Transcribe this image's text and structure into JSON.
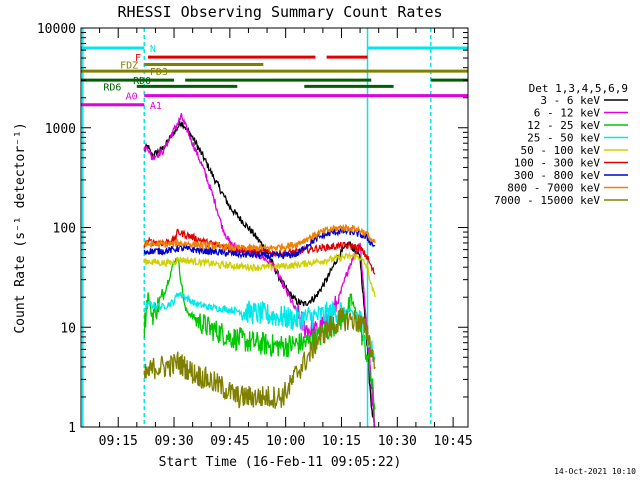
{
  "chart_data": {
    "type": "line",
    "title": "RHESSI Observing Summary Count Rates",
    "xlabel_prefix": "Start Time (",
    "start_time": "16-Feb-11 09:05:22",
    "xlabel_suffix": ")",
    "ylabel": "Count Rate (s⁻¹ detector⁻¹)",
    "y_scale": "log",
    "ylim": [
      1,
      10000
    ],
    "xlim_minutes_since_0905": [
      0,
      104
    ],
    "x_ticks": [
      {
        "label": "09:15",
        "minute": 10
      },
      {
        "label": "09:30",
        "minute": 25
      },
      {
        "label": "09:45",
        "minute": 40
      },
      {
        "label": "10:00",
        "minute": 55
      },
      {
        "label": "10:15",
        "minute": 70
      },
      {
        "label": "10:30",
        "minute": 85
      },
      {
        "label": "10:45",
        "minute": 100
      }
    ],
    "y_ticks": [
      {
        "label": "1",
        "value": 1
      },
      {
        "label": "10",
        "value": 10
      },
      {
        "label": "100",
        "value": 100
      },
      {
        "label": "1000",
        "value": 1000
      },
      {
        "label": "10000",
        "value": 10000
      }
    ],
    "legend": {
      "title": "Det 1,3,4,5,6,9",
      "placement": "right"
    },
    "footer_date": "14-Oct-2021 10:10",
    "series": [
      {
        "name": "3 - 6 keV",
        "color": "#000000",
        "x": [
          17,
          18,
          19,
          22,
          25,
          27,
          30,
          33,
          36,
          38,
          40,
          43,
          46,
          49,
          52,
          54,
          56,
          58,
          60,
          63,
          66,
          69,
          72,
          75,
          77,
          78,
          79
        ],
        "y": [
          600,
          650,
          520,
          620,
          900,
          1150,
          800,
          500,
          300,
          220,
          160,
          120,
          90,
          65,
          40,
          28,
          22,
          18,
          17,
          20,
          30,
          50,
          70,
          50,
          6,
          2,
          1
        ]
      },
      {
        "name": "6 - 12 keV",
        "color": "#e000e0",
        "x": [
          17,
          18,
          19,
          22,
          25,
          27,
          30,
          33,
          36,
          38,
          40,
          43,
          46,
          49,
          52,
          54,
          56,
          58,
          60,
          63,
          66,
          69,
          72,
          75,
          77,
          78,
          79
        ],
        "y": [
          600,
          640,
          500,
          580,
          950,
          1300,
          700,
          380,
          180,
          100,
          70,
          60,
          55,
          50,
          40,
          28,
          20,
          14,
          10,
          9,
          11,
          18,
          40,
          70,
          8,
          3,
          1
        ]
      },
      {
        "name": "12 - 25 keV",
        "color": "#00c800",
        "x": [
          17,
          18,
          19,
          22,
          25,
          26,
          28,
          31,
          34,
          37,
          40,
          43,
          46,
          49,
          52,
          55,
          58,
          61,
          64,
          67,
          70,
          73,
          75,
          77,
          78,
          79
        ],
        "y": [
          10,
          22,
          13,
          20,
          45,
          50,
          15,
          12,
          10,
          9,
          8,
          7.5,
          7,
          6.8,
          6.5,
          6.5,
          6.8,
          7,
          8,
          10,
          12,
          18,
          10,
          5,
          3,
          1.5
        ]
      },
      {
        "name": "25 - 50 keV",
        "color": "#00e8e8",
        "x": [
          17,
          18,
          22,
          25,
          26,
          28,
          31,
          34,
          37,
          40,
          43,
          46,
          49,
          52,
          55,
          58,
          61,
          64,
          67,
          70,
          73,
          75,
          77,
          78,
          79
        ],
        "y": [
          15,
          17,
          16,
          18,
          22,
          20,
          17,
          16,
          15.5,
          15,
          14.5,
          14,
          13.5,
          13,
          12.5,
          12,
          12.5,
          13,
          14,
          15,
          14,
          12,
          8,
          6,
          5
        ]
      },
      {
        "name": "50 - 100 keV",
        "color": "#d0d000",
        "x": [
          17,
          18,
          22,
          25,
          26,
          30,
          34,
          38,
          42,
          46,
          50,
          54,
          58,
          61,
          64,
          67,
          70,
          73,
          75,
          77,
          78,
          79
        ],
        "y": [
          45,
          46,
          44,
          45,
          48,
          46,
          44,
          42,
          41,
          40,
          40,
          41,
          42,
          44,
          46,
          48,
          50,
          52,
          50,
          40,
          26,
          20
        ]
      },
      {
        "name": "100 - 300 keV",
        "color": "#e00000",
        "x": [
          17,
          18,
          22,
          25,
          26,
          30,
          34,
          38,
          42,
          46,
          50,
          54,
          58,
          61,
          64,
          67,
          70,
          73,
          75,
          77,
          78,
          79
        ],
        "y": [
          68,
          72,
          70,
          75,
          90,
          80,
          70,
          65,
          60,
          58,
          56,
          55,
          57,
          60,
          62,
          64,
          66,
          65,
          62,
          50,
          40,
          34
        ]
      },
      {
        "name": "300 - 800 keV",
        "color": "#0000d0",
        "x": [
          17,
          18,
          22,
          25,
          26,
          30,
          34,
          38,
          42,
          46,
          50,
          54,
          58,
          61,
          64,
          67,
          70,
          73,
          75,
          77,
          78,
          79
        ],
        "y": [
          56,
          58,
          58,
          60,
          62,
          60,
          58,
          56,
          54,
          53,
          52,
          52,
          54,
          68,
          80,
          88,
          92,
          90,
          85,
          78,
          70,
          65
        ]
      },
      {
        "name": "800 - 7000 keV",
        "color": "#f08000",
        "x": [
          17,
          18,
          22,
          25,
          26,
          30,
          34,
          38,
          42,
          46,
          50,
          54,
          58,
          61,
          64,
          67,
          70,
          73,
          75,
          77,
          78,
          79
        ],
        "y": [
          67,
          68,
          68,
          68,
          70,
          68,
          66,
          64,
          62,
          62,
          62,
          64,
          68,
          78,
          88,
          96,
          100,
          98,
          94,
          85,
          75,
          70
        ]
      },
      {
        "name": "7000 - 15000 keV",
        "color": "#808000",
        "x": [
          17,
          18,
          20,
          22,
          25,
          26,
          30,
          34,
          38,
          42,
          46,
          50,
          54,
          56,
          58,
          61,
          64,
          67,
          70,
          73,
          75,
          77,
          78,
          79
        ],
        "y": [
          3.2,
          3.5,
          4,
          4,
          4.2,
          4.5,
          3.5,
          3,
          2.5,
          2,
          2,
          2,
          2,
          2.5,
          3.5,
          5,
          8,
          10,
          12,
          12,
          11,
          9,
          6,
          4
        ]
      }
    ],
    "state_bars": [
      {
        "label": "N",
        "label_color": "#00e8e8",
        "color": "#00e8e8",
        "y_value": 6300,
        "label_minute": 18.5,
        "segments": [
          [
            0,
            17
          ],
          [
            77,
            104
          ]
        ]
      },
      {
        "label": "F",
        "label_color": "#e00000",
        "color": "#e00000",
        "y_value": 5100,
        "label_minute": 14.5,
        "segments": [
          [
            18,
            63
          ],
          [
            66,
            77
          ]
        ]
      },
      {
        "label": "FDZ",
        "label_color": "#808000",
        "color": "#808000",
        "y_value": 4300,
        "label_minute": 10.5,
        "segments": [
          [
            17,
            49
          ]
        ]
      },
      {
        "label": "FD3",
        "label_color": "#808000",
        "color": "#808000",
        "y_value": 3700,
        "label_minute": 18.5,
        "segments": [
          [
            0,
            104
          ]
        ]
      },
      {
        "label": "RD0",
        "label_color": "#006000",
        "color": "#006000",
        "y_value": 3000,
        "label_minute": 14.0,
        "segments": [
          [
            0,
            25
          ],
          [
            28,
            78
          ],
          [
            94,
            104
          ]
        ]
      },
      {
        "label": "RD6",
        "label_color": "#006000",
        "color": "#006000",
        "y_value": 2600,
        "label_minute": 6.0,
        "segments": [
          [
            15,
            42
          ],
          [
            60,
            84
          ]
        ]
      },
      {
        "label": "A0",
        "label_color": "#e000e0",
        "color": "#e000e0",
        "y_value": 2100,
        "label_minute": 12.0,
        "segments": [
          [
            17,
            104
          ]
        ]
      },
      {
        "label": "A1",
        "label_color": "#e000e0",
        "color": "#e000e0",
        "y_value": 1700,
        "label_minute": 18.5,
        "segments": [
          [
            0,
            17
          ]
        ]
      }
    ],
    "vertical_lines": [
      {
        "minute": 0.5,
        "color": "#00e8e8",
        "style": "solid"
      },
      {
        "minute": 17,
        "color": "#00e8e8",
        "style": "dashed"
      },
      {
        "minute": 77,
        "color": "#00e8e8",
        "style": "solid"
      },
      {
        "minute": 94,
        "color": "#00e8e8",
        "style": "dashed"
      }
    ]
  }
}
